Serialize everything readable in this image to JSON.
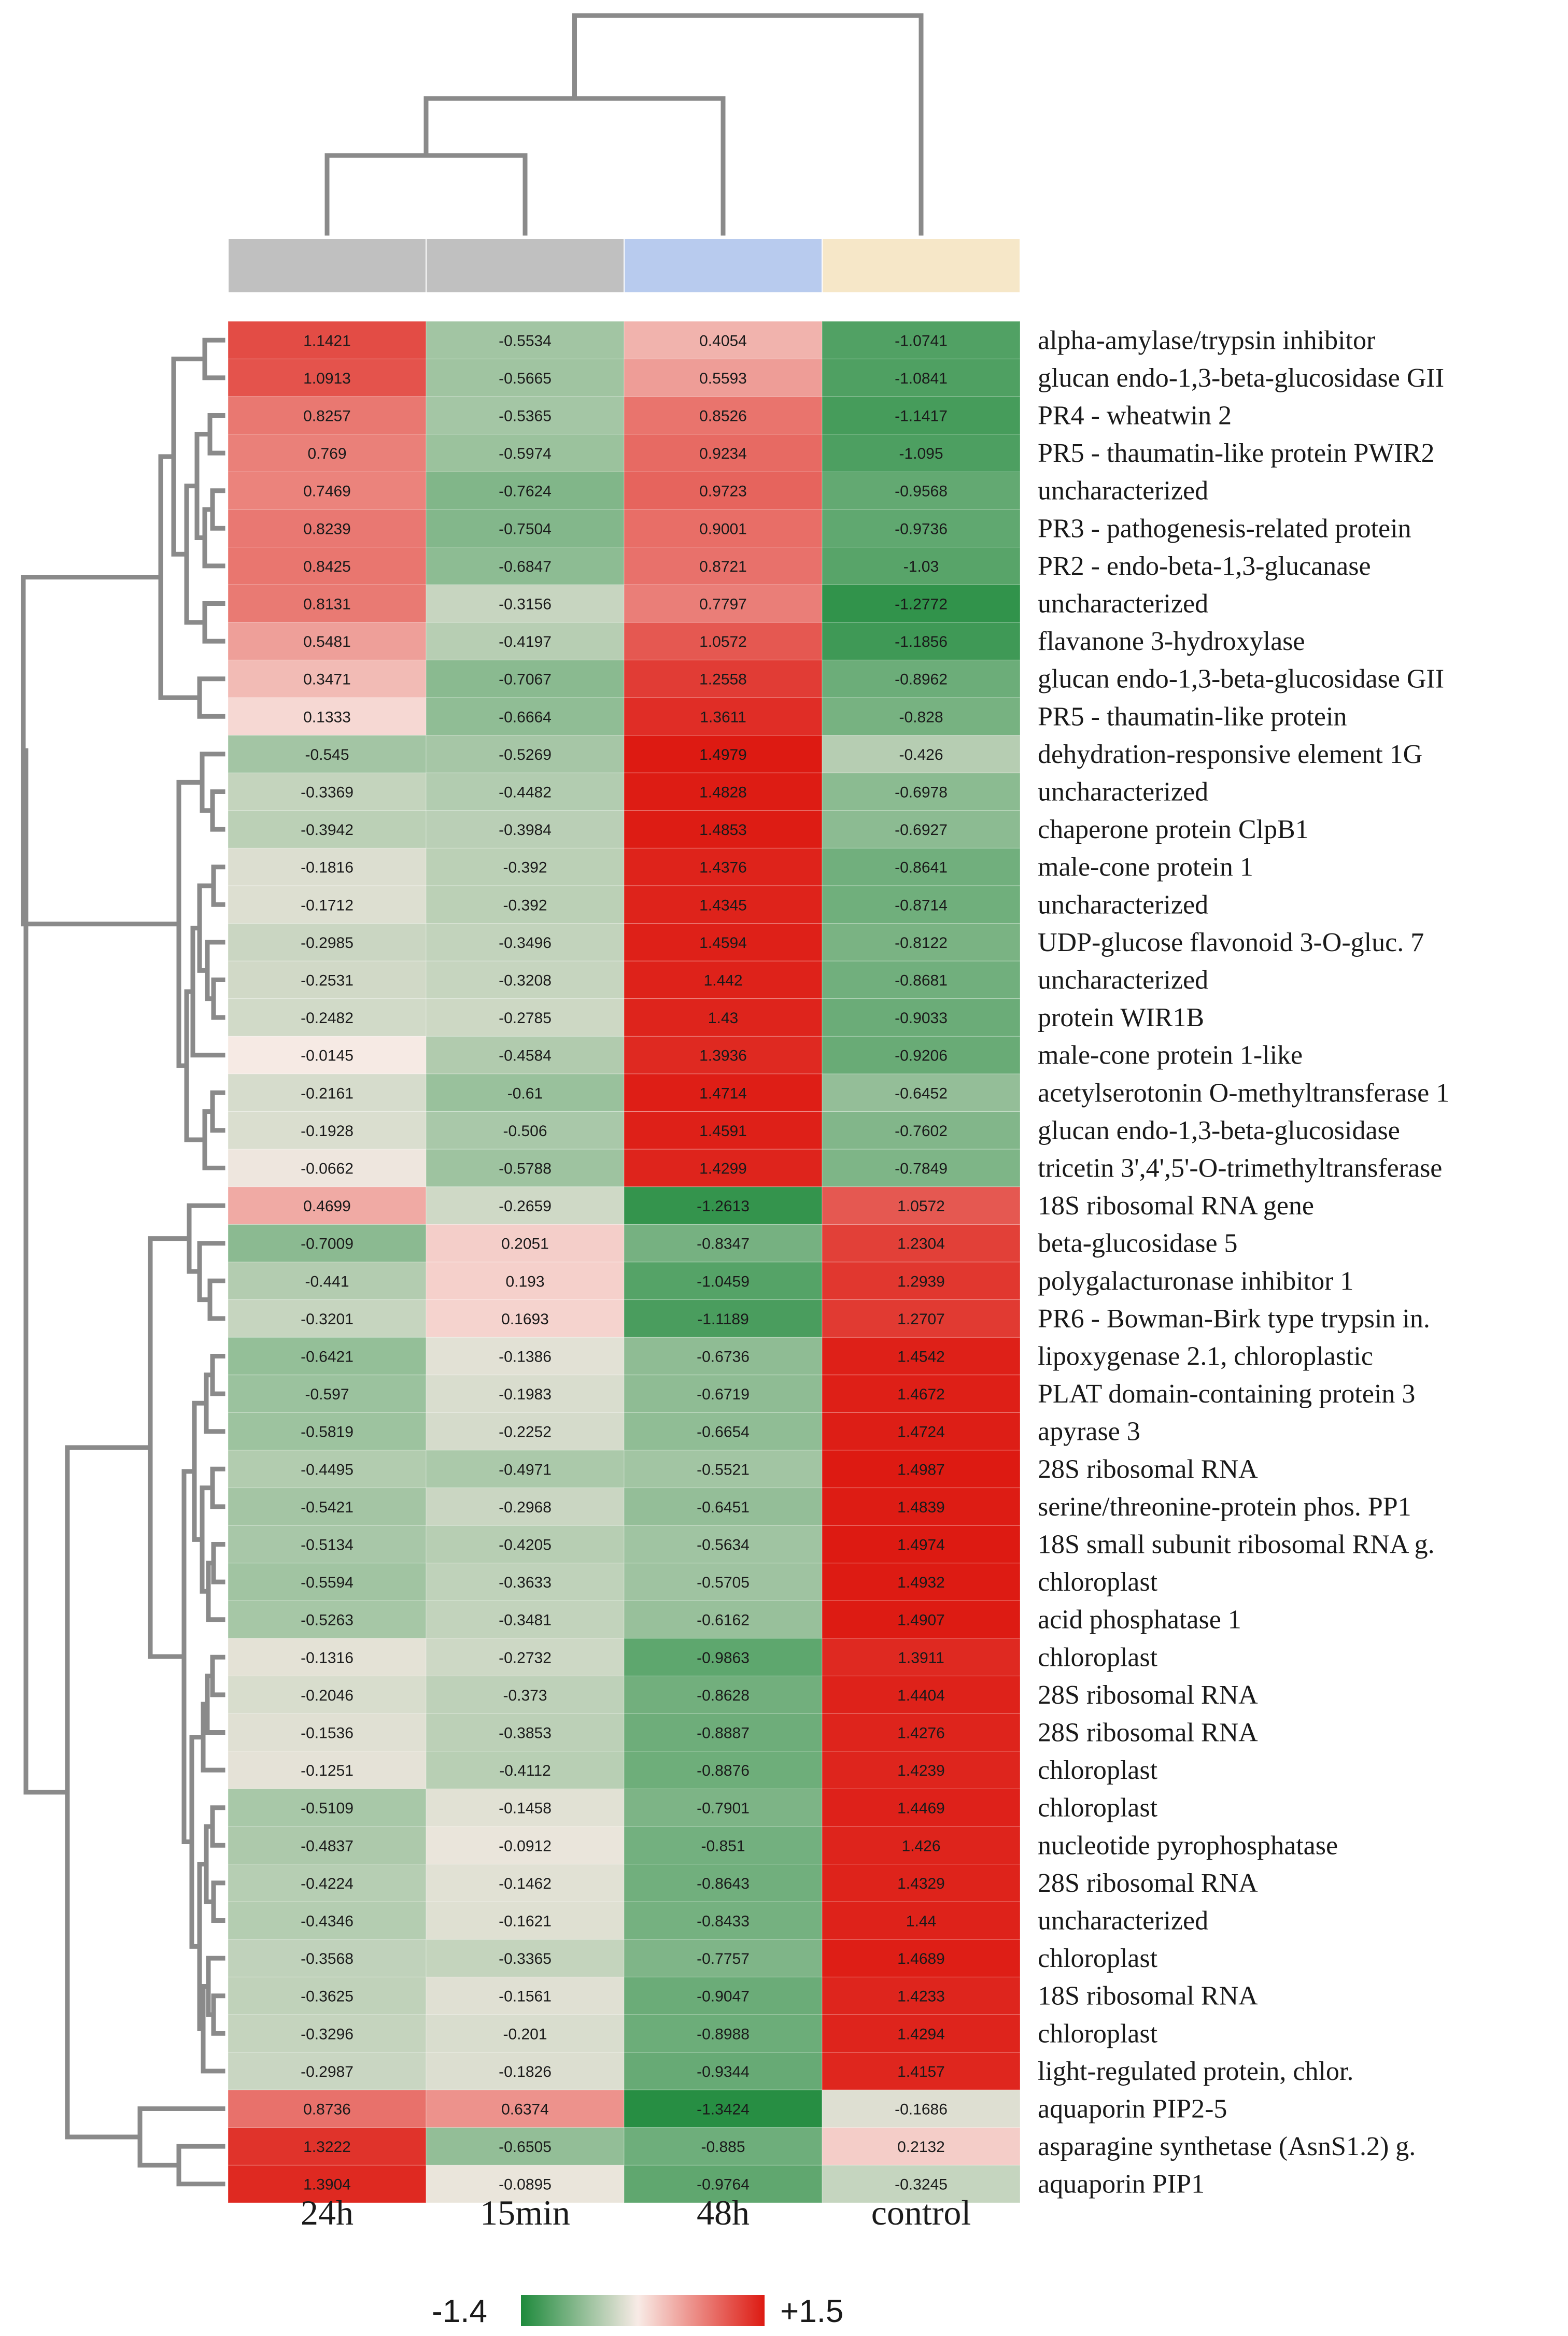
{
  "chart_data": {
    "type": "heatmap",
    "columns": [
      "24h",
      "15min",
      "48h",
      "control"
    ],
    "column_group_colors": [
      "#c0c0c0",
      "#c0c0c0",
      "#b8cbee",
      "#f6e7c8"
    ],
    "rows": [
      {
        "label": "alpha-amylase/trypsin inhibitor",
        "values": [
          1.1421,
          -0.5534,
          0.4054,
          -1.0741
        ],
        "texts": [
          "1.1421",
          "-0.5534",
          "0.4054",
          "-1.0741"
        ]
      },
      {
        "label": "glucan endo-1,3-beta-glucosidase GII",
        "values": [
          1.0913,
          -0.5665,
          0.5593,
          -1.0841
        ],
        "texts": [
          "1.0913",
          "-0.5665",
          "0.5593",
          "-1.0841"
        ]
      },
      {
        "label": "PR4 - wheatwin 2",
        "values": [
          0.8257,
          -0.5365,
          0.8526,
          -1.1417
        ],
        "texts": [
          "0.8257",
          "-0.5365",
          "0.8526",
          "-1.1417"
        ]
      },
      {
        "label": "PR5 - thaumatin-like protein PWIR2",
        "values": [
          0.769,
          -0.5974,
          0.9234,
          -1.095
        ],
        "texts": [
          "0.769",
          "-0.5974",
          "0.9234",
          "-1.095"
        ]
      },
      {
        "label": "uncharacterized",
        "values": [
          0.7469,
          -0.7624,
          0.9723,
          -0.9568
        ],
        "texts": [
          "0.7469",
          "-0.7624",
          "0.9723",
          "-0.9568"
        ]
      },
      {
        "label": "PR3 - pathogenesis-related protein",
        "values": [
          0.8239,
          -0.7504,
          0.9001,
          -0.9736
        ],
        "texts": [
          "0.8239",
          "-0.7504",
          "0.9001",
          "-0.9736"
        ]
      },
      {
        "label": "PR2 - endo-beta-1,3-glucanase",
        "values": [
          0.8425,
          -0.6847,
          0.8721,
          -1.03
        ],
        "texts": [
          "0.8425",
          "-0.6847",
          "0.8721",
          "-1.03"
        ]
      },
      {
        "label": "uncharacterized",
        "values": [
          0.8131,
          -0.3156,
          0.7797,
          -1.2772
        ],
        "texts": [
          "0.8131",
          "-0.3156",
          "0.7797",
          "-1.2772"
        ]
      },
      {
        "label": "flavanone 3-hydroxylase",
        "values": [
          0.5481,
          -0.4197,
          1.0572,
          -1.1856
        ],
        "texts": [
          "0.5481",
          "-0.4197",
          "1.0572",
          "-1.1856"
        ]
      },
      {
        "label": "glucan endo-1,3-beta-glucosidase GII",
        "values": [
          0.3471,
          -0.7067,
          1.2558,
          -0.8962
        ],
        "texts": [
          "0.3471",
          "-0.7067",
          "1.2558",
          "-0.8962"
        ]
      },
      {
        "label": "PR5 - thaumatin-like protein",
        "values": [
          0.1333,
          -0.6664,
          1.3611,
          -0.828
        ],
        "texts": [
          "0.1333",
          "-0.6664",
          "1.3611",
          "-0.828"
        ]
      },
      {
        "label": "dehydration-responsive element 1G",
        "values": [
          -0.545,
          -0.5269,
          1.4979,
          -0.426
        ],
        "texts": [
          "-0.545",
          "-0.5269",
          "1.4979",
          "-0.426"
        ]
      },
      {
        "label": "uncharacterized",
        "values": [
          -0.3369,
          -0.4482,
          1.4828,
          -0.6978
        ],
        "texts": [
          "-0.3369",
          "-0.4482",
          "1.4828",
          "-0.6978"
        ]
      },
      {
        "label": "chaperone protein ClpB1",
        "values": [
          -0.3942,
          -0.3984,
          1.4853,
          -0.6927
        ],
        "texts": [
          "-0.3942",
          "-0.3984",
          "1.4853",
          "-0.6927"
        ]
      },
      {
        "label": "male-cone protein 1",
        "values": [
          -0.1816,
          -0.392,
          1.4376,
          -0.8641
        ],
        "texts": [
          "-0.1816",
          "-0.392",
          "1.4376",
          "-0.8641"
        ]
      },
      {
        "label": "uncharacterized",
        "values": [
          -0.1712,
          -0.392,
          1.4345,
          -0.8714
        ],
        "texts": [
          "-0.1712",
          "-0.392",
          "1.4345",
          "-0.8714"
        ]
      },
      {
        "label": "UDP-glucose flavonoid 3-O-gluc. 7",
        "values": [
          -0.2985,
          -0.3496,
          1.4594,
          -0.8122
        ],
        "texts": [
          "-0.2985",
          "-0.3496",
          "1.4594",
          "-0.8122"
        ]
      },
      {
        "label": "uncharacterized",
        "values": [
          -0.2531,
          -0.3208,
          1.442,
          -0.8681
        ],
        "texts": [
          "-0.2531",
          "-0.3208",
          "1.442",
          "-0.8681"
        ]
      },
      {
        "label": "protein WIR1B",
        "values": [
          -0.2482,
          -0.2785,
          1.43,
          -0.9033
        ],
        "texts": [
          "-0.2482",
          "-0.2785",
          "1.43",
          "-0.9033"
        ]
      },
      {
        "label": "male-cone protein 1-like",
        "values": [
          -0.0145,
          -0.4584,
          1.3936,
          -0.9206
        ],
        "texts": [
          "-0.0145",
          "-0.4584",
          "1.3936",
          "-0.9206"
        ]
      },
      {
        "label": "acetylserotonin O-methyltransferase 1",
        "values": [
          -0.2161,
          -0.61,
          1.4714,
          -0.6452
        ],
        "texts": [
          "-0.2161",
          "-0.61",
          "1.4714",
          "-0.6452"
        ]
      },
      {
        "label": "glucan endo-1,3-beta-glucosidase",
        "values": [
          -0.1928,
          -0.506,
          1.4591,
          -0.7602
        ],
        "texts": [
          "-0.1928",
          "-0.506",
          "1.4591",
          "-0.7602"
        ]
      },
      {
        "label": "tricetin 3',4',5'-O-trimethyltransferase",
        "values": [
          -0.0662,
          -0.5788,
          1.4299,
          -0.7849
        ],
        "texts": [
          "-0.0662",
          "-0.5788",
          "1.4299",
          "-0.7849"
        ]
      },
      {
        "label": "18S ribosomal RNA gene",
        "values": [
          0.4699,
          -0.2659,
          -1.2613,
          1.0572
        ],
        "texts": [
          "0.4699",
          "-0.2659",
          "-1.2613",
          "1.0572"
        ]
      },
      {
        "label": "beta-glucosidase 5",
        "values": [
          -0.7009,
          0.2051,
          -0.8347,
          1.2304
        ],
        "texts": [
          "-0.7009",
          "0.2051",
          "-0.8347",
          "1.2304"
        ]
      },
      {
        "label": "polygalacturonase inhibitor 1",
        "values": [
          -0.441,
          0.193,
          -1.0459,
          1.2939
        ],
        "texts": [
          "-0.441",
          "0.193",
          "-1.0459",
          "1.2939"
        ]
      },
      {
        "label": "PR6 - Bowman-Birk type trypsin in.",
        "values": [
          -0.3201,
          0.1693,
          -1.1189,
          1.2707
        ],
        "texts": [
          "-0.3201",
          "0.1693",
          "-1.1189",
          "1.2707"
        ]
      },
      {
        "label": "lipoxygenase 2.1, chloroplastic",
        "values": [
          -0.6421,
          -0.1386,
          -0.6736,
          1.4542
        ],
        "texts": [
          "-0.6421",
          "-0.1386",
          "-0.6736",
          "1.4542"
        ]
      },
      {
        "label": "PLAT domain-containing protein 3",
        "values": [
          -0.597,
          -0.1983,
          -0.6719,
          1.4672
        ],
        "texts": [
          "-0.597",
          "-0.1983",
          "-0.6719",
          "1.4672"
        ]
      },
      {
        "label": "apyrase 3",
        "values": [
          -0.5819,
          -0.2252,
          -0.6654,
          1.4724
        ],
        "texts": [
          "-0.5819",
          "-0.2252",
          "-0.6654",
          "1.4724"
        ]
      },
      {
        "label": "28S ribosomal RNA",
        "values": [
          -0.4495,
          -0.4971,
          -0.5521,
          1.4987
        ],
        "texts": [
          "-0.4495",
          "-0.4971",
          "-0.5521",
          "1.4987"
        ]
      },
      {
        "label": "serine/threonine-protein phos. PP1",
        "values": [
          -0.5421,
          -0.2968,
          -0.6451,
          1.4839
        ],
        "texts": [
          "-0.5421",
          "-0.2968",
          "-0.6451",
          "1.4839"
        ]
      },
      {
        "label": "18S small subunit ribosomal RNA g.",
        "values": [
          -0.5134,
          -0.4205,
          -0.5634,
          1.4974
        ],
        "texts": [
          "-0.5134",
          "-0.4205",
          "-0.5634",
          "1.4974"
        ]
      },
      {
        "label": "chloroplast",
        "values": [
          -0.5594,
          -0.3633,
          -0.5705,
          1.4932
        ],
        "texts": [
          "-0.5594",
          "-0.3633",
          "-0.5705",
          "1.4932"
        ]
      },
      {
        "label": "acid phosphatase 1",
        "values": [
          -0.5263,
          -0.3481,
          -0.6162,
          1.4907
        ],
        "texts": [
          "-0.5263",
          "-0.3481",
          "-0.6162",
          "1.4907"
        ]
      },
      {
        "label": "chloroplast",
        "values": [
          -0.1316,
          -0.2732,
          -0.9863,
          1.3911
        ],
        "texts": [
          "-0.1316",
          "-0.2732",
          "-0.9863",
          "1.3911"
        ]
      },
      {
        "label": "28S ribosomal RNA",
        "values": [
          -0.2046,
          -0.373,
          -0.8628,
          1.4404
        ],
        "texts": [
          "-0.2046",
          "-0.373",
          "-0.8628",
          "1.4404"
        ]
      },
      {
        "label": "28S ribosomal RNA",
        "values": [
          -0.1536,
          -0.3853,
          -0.8887,
          1.4276
        ],
        "texts": [
          "-0.1536",
          "-0.3853",
          "-0.8887",
          "1.4276"
        ]
      },
      {
        "label": "chloroplast",
        "values": [
          -0.1251,
          -0.4112,
          -0.8876,
          1.4239
        ],
        "texts": [
          "-0.1251",
          "-0.4112",
          "-0.8876",
          "1.4239"
        ]
      },
      {
        "label": "chloroplast",
        "values": [
          -0.5109,
          -0.1458,
          -0.7901,
          1.4469
        ],
        "texts": [
          "-0.5109",
          "-0.1458",
          "-0.7901",
          "1.4469"
        ]
      },
      {
        "label": "nucleotide pyrophosphatase",
        "values": [
          -0.4837,
          -0.0912,
          -0.851,
          1.426
        ],
        "texts": [
          "-0.4837",
          "-0.0912",
          "-0.851",
          "1.426"
        ]
      },
      {
        "label": "28S ribosomal RNA",
        "values": [
          -0.4224,
          -0.1462,
          -0.8643,
          1.4329
        ],
        "texts": [
          "-0.4224",
          "-0.1462",
          "-0.8643",
          "1.4329"
        ]
      },
      {
        "label": "uncharacterized",
        "values": [
          -0.4346,
          -0.1621,
          -0.8433,
          1.44
        ],
        "texts": [
          "-0.4346",
          "-0.1621",
          "-0.8433",
          "1.44"
        ]
      },
      {
        "label": "chloroplast",
        "values": [
          -0.3568,
          -0.3365,
          -0.7757,
          1.4689
        ],
        "texts": [
          "-0.3568",
          "-0.3365",
          "-0.7757",
          "1.4689"
        ]
      },
      {
        "label": "18S ribosomal RNA",
        "values": [
          -0.3625,
          -0.1561,
          -0.9047,
          1.4233
        ],
        "texts": [
          "-0.3625",
          "-0.1561",
          "-0.9047",
          "1.4233"
        ]
      },
      {
        "label": "chloroplast",
        "values": [
          -0.3296,
          -0.201,
          -0.8988,
          1.4294
        ],
        "texts": [
          "-0.3296",
          "-0.201",
          "-0.8988",
          "1.4294"
        ]
      },
      {
        "label": "light-regulated protein, chlor.",
        "values": [
          -0.2987,
          -0.1826,
          -0.9344,
          1.4157
        ],
        "texts": [
          "-0.2987",
          "-0.1826",
          "-0.9344",
          "1.4157"
        ]
      },
      {
        "label": "aquaporin PIP2-5",
        "values": [
          0.8736,
          0.6374,
          -1.3424,
          -0.1686
        ],
        "texts": [
          "0.8736",
          "0.6374",
          "-1.3424",
          "-0.1686"
        ]
      },
      {
        "label": "asparagine synthetase (AsnS1.2) g.",
        "values": [
          1.3222,
          -0.6505,
          -0.885,
          0.2132
        ],
        "texts": [
          "1.3222",
          "-0.6505",
          "-0.885",
          "0.2132"
        ]
      },
      {
        "label": "aquaporin PIP1",
        "values": [
          1.3904,
          -0.0895,
          -0.9764,
          -0.3245
        ],
        "texts": [
          "1.3904",
          "-0.0895",
          "-0.9764",
          "-0.3245"
        ]
      }
    ],
    "color_scale": {
      "min": -1.4,
      "max": 1.5,
      "min_label": "-1.4",
      "max_label": "+1.5",
      "low_color": "#1e8a3c",
      "mid_color": "#f8ebe6",
      "high_color": "#dd1a12"
    }
  }
}
